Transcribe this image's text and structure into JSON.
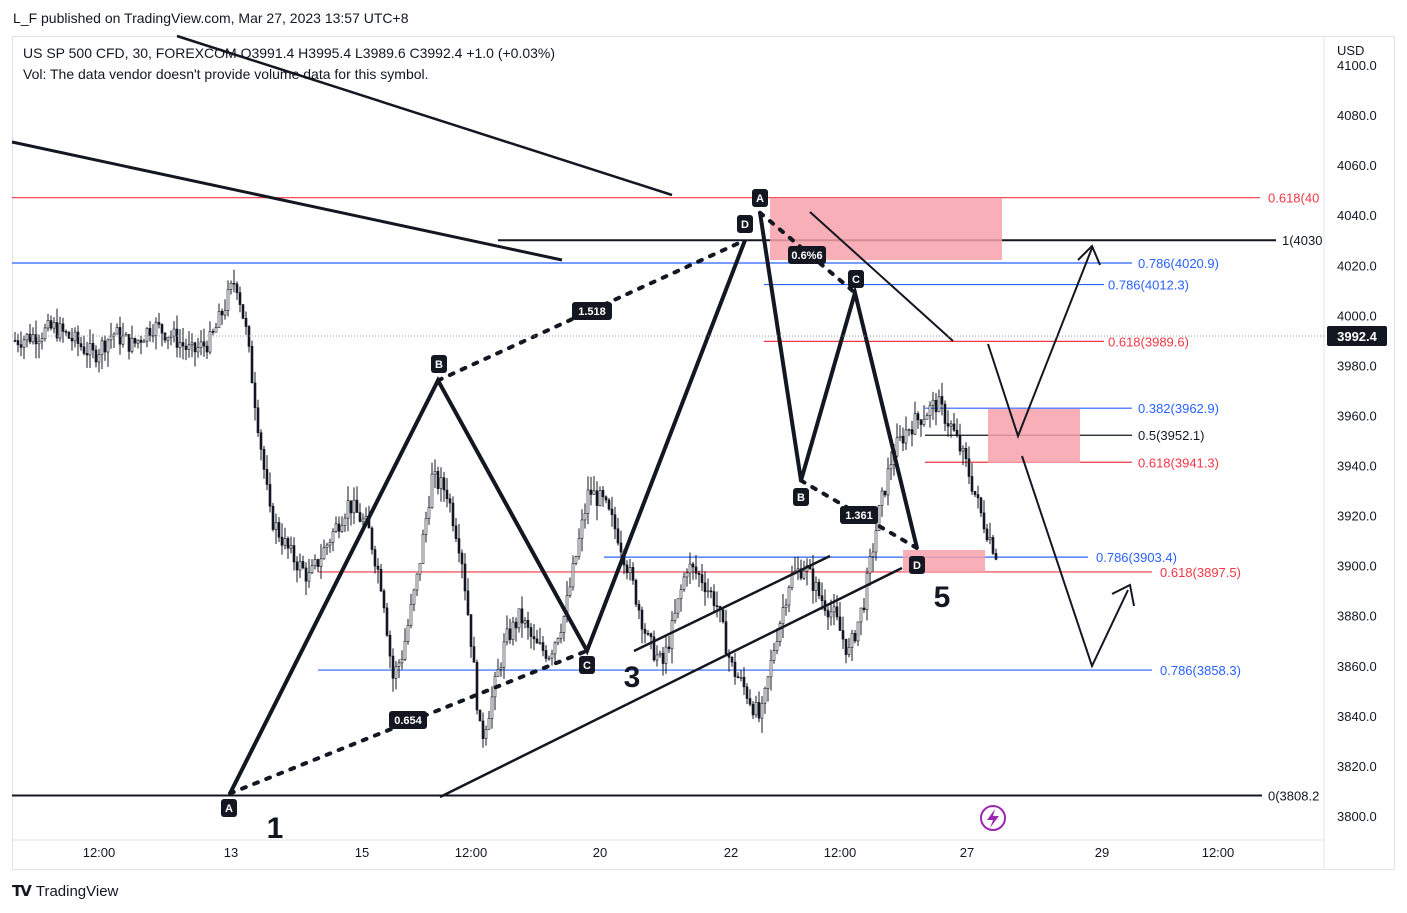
{
  "header": {
    "published": "L_F published on TradingView.com, Mar 27, 2023 13:57 UTC+8"
  },
  "legend": {
    "line1": "US SP 500 CFD, 30, FOREXCOM  O3991.4  H3995.4  L3989.6  C3992.4  +1.0 (+0.03%)",
    "line2": "Vol: The data vendor doesn't provide volume data for this symbol."
  },
  "price_axis": {
    "currency": "USD",
    "last_price": "3992.4",
    "last_price_bg": "#131722"
  },
  "footer": {
    "brand": "TradingView"
  },
  "colors": {
    "red": "#f23645",
    "blue": "#2962ff",
    "black": "#131722",
    "zone": "#f7a1aa",
    "candle": "#131722",
    "lightning": "#9c27b0"
  },
  "chart_data": {
    "type": "candlestick",
    "title": "",
    "xlabel": "",
    "ylabel": "",
    "ylim": [
      3795,
      4105
    ],
    "y_ticks": [
      "4100.0",
      "4080.0",
      "4060.0",
      "4040.0",
      "4020.0",
      "4000.0",
      "3980.0",
      "3960.0",
      "3940.0",
      "3920.0",
      "3900.0",
      "3880.0",
      "3860.0",
      "3840.0",
      "3820.0",
      "3800.0"
    ],
    "x_ticks": [
      "12:00",
      "13",
      "15",
      "12:00",
      "20",
      "22",
      "12:00",
      "27",
      "29",
      "12:00"
    ],
    "price_path": [
      [
        0,
        3990
      ],
      [
        0.02,
        3992
      ],
      [
        0.04,
        3995
      ],
      [
        0.06,
        3990
      ],
      [
        0.08,
        3984
      ],
      [
        0.1,
        3993
      ],
      [
        0.12,
        3988
      ],
      [
        0.14,
        3996
      ],
      [
        0.16,
        3992
      ],
      [
        0.18,
        3985
      ],
      [
        0.2,
        3990
      ],
      [
        0.215,
        4005
      ],
      [
        0.225,
        4015
      ],
      [
        0.235,
        3995
      ],
      [
        0.245,
        3965
      ],
      [
        0.26,
        3920
      ],
      [
        0.28,
        3905
      ],
      [
        0.3,
        3895
      ],
      [
        0.32,
        3910
      ],
      [
        0.34,
        3925
      ],
      [
        0.36,
        3915
      ],
      [
        0.375,
        3890
      ],
      [
        0.385,
        3855
      ],
      [
        0.395,
        3865
      ],
      [
        0.41,
        3895
      ],
      [
        0.425,
        3935
      ],
      [
        0.44,
        3930
      ],
      [
        0.455,
        3905
      ],
      [
        0.465,
        3870
      ],
      [
        0.475,
        3830
      ],
      [
        0.485,
        3845
      ],
      [
        0.5,
        3870
      ],
      [
        0.515,
        3880
      ],
      [
        0.53,
        3868
      ],
      [
        0.545,
        3865
      ],
      [
        0.56,
        3880
      ],
      [
        0.57,
        3900
      ],
      [
        0.585,
        3930
      ],
      [
        0.6,
        3925
      ],
      [
        0.615,
        3912
      ],
      [
        0.63,
        3892
      ],
      [
        0.645,
        3870
      ],
      [
        0.66,
        3860
      ],
      [
        0.67,
        3875
      ],
      [
        0.685,
        3900
      ],
      [
        0.7,
        3895
      ],
      [
        0.715,
        3885
      ],
      [
        0.73,
        3860
      ],
      [
        0.745,
        3850
      ],
      [
        0.76,
        3838
      ],
      [
        0.775,
        3870
      ],
      [
        0.79,
        3895
      ],
      [
        0.805,
        3900
      ],
      [
        0.82,
        3888
      ],
      [
        0.835,
        3880
      ],
      [
        0.85,
        3865
      ],
      [
        0.865,
        3885
      ],
      [
        0.88,
        3920
      ],
      [
        0.895,
        3945
      ],
      [
        0.91,
        3955
      ],
      [
        0.925,
        3960
      ],
      [
        0.94,
        3965
      ],
      [
        0.955,
        3955
      ],
      [
        0.97,
        3940
      ],
      [
        0.985,
        3920
      ],
      [
        1,
        3905
      ]
    ],
    "fib_levels": [
      {
        "label": "0.618(40",
        "value": 4047,
        "color": "red"
      },
      {
        "label": "1(4030",
        "value": 4030,
        "color": "black"
      },
      {
        "label": "0.786(4020.9)",
        "value": 4020.9,
        "color": "blue"
      },
      {
        "label": "0.786(4012.3)",
        "value": 4012.3,
        "color": "blue"
      },
      {
        "label": "0.618(3989.6)",
        "value": 3989.6,
        "color": "red"
      },
      {
        "label": "0.382(3962.9)",
        "value": 3962.9,
        "color": "blue"
      },
      {
        "label": "0.5(3952.1)",
        "value": 3952.1,
        "color": "black"
      },
      {
        "label": "0.618(3941.3)",
        "value": 3941.3,
        "color": "red"
      },
      {
        "label": "0.786(3903.4)",
        "value": 3903.4,
        "color": "blue"
      },
      {
        "label": "0.618(3897.5)",
        "value": 3897.5,
        "color": "red"
      },
      {
        "label": "0.786(3858.3)",
        "value": 3858.3,
        "color": "blue"
      },
      {
        "label": "0(3808.2",
        "value": 3808.2,
        "color": "black"
      }
    ],
    "pattern1_points": [
      {
        "label": "A",
        "value": 3809
      },
      {
        "label": "B",
        "value": 3974
      },
      {
        "label": "C",
        "value": 3866
      },
      {
        "label": "D",
        "value": 4030
      }
    ],
    "pattern2_points": [
      {
        "label": "A",
        "value": 4041
      },
      {
        "label": "B",
        "value": 3934
      },
      {
        "label": "C",
        "value": 4009
      },
      {
        "label": "D",
        "value": 3907
      }
    ],
    "ratios": [
      "1.518",
      "0.654",
      "0.6%6",
      "1.361"
    ],
    "wave_labels": [
      "1",
      "3",
      "5"
    ]
  }
}
